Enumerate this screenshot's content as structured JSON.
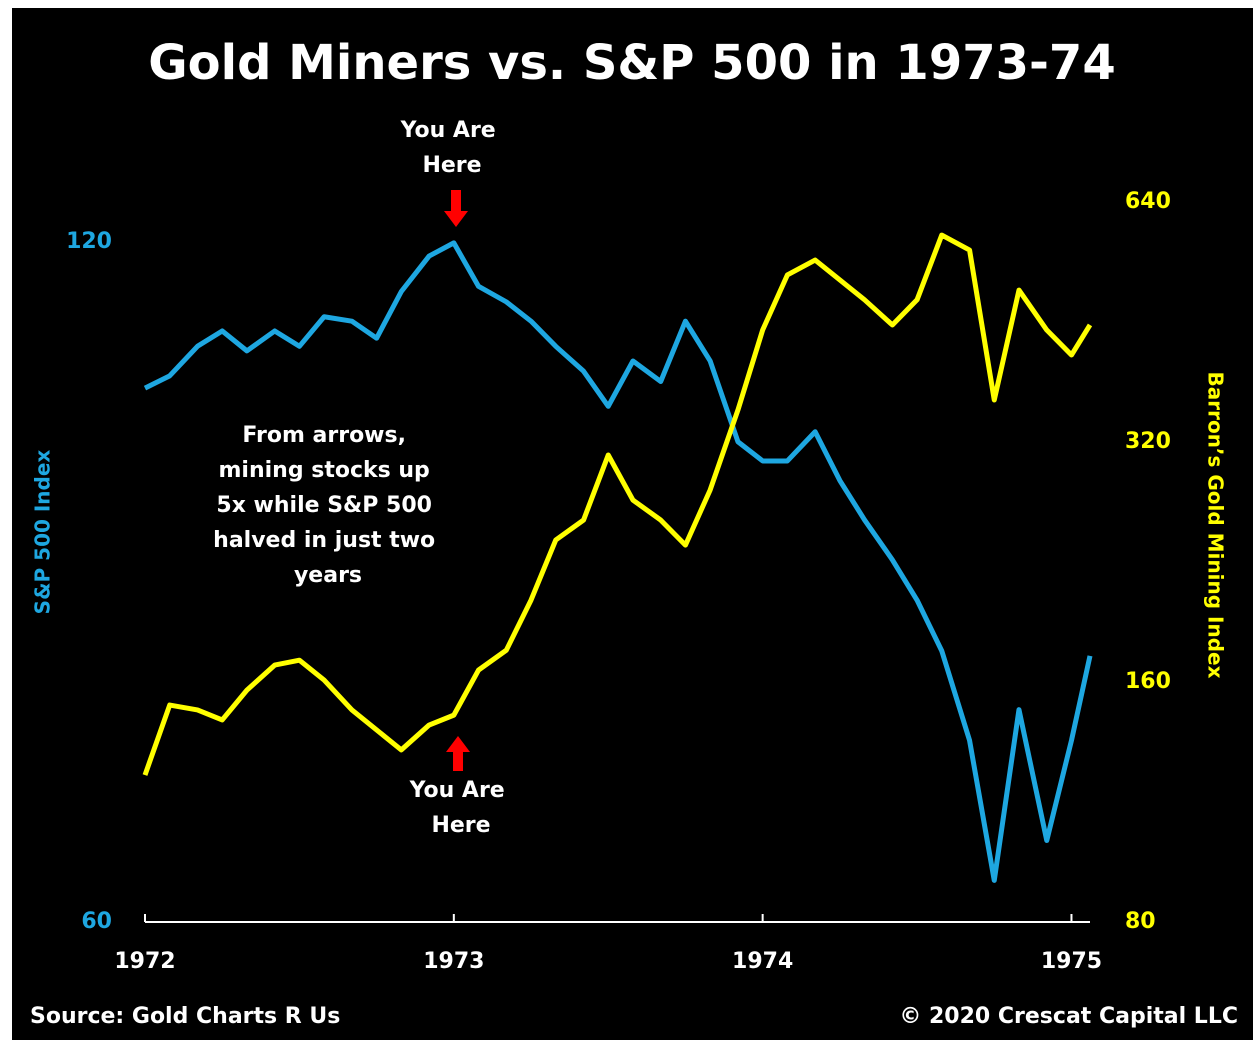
{
  "chart_data": {
    "type": "line",
    "title": "Gold Miners vs. S&P 500 in 1973-74",
    "ylabel": "S&P 500 Index",
    "y2label": "Barron’s Gold Mining Index",
    "source": "Source: Gold Charts R Us",
    "copyright": "© 2020 Crescat Capital LLC",
    "annotations": {
      "top_arrow": [
        "You Are",
        "Here"
      ],
      "bottom_arrow": [
        "You Are",
        "Here"
      ],
      "note": [
        "From arrows,",
        "mining stocks up",
        "5x while S&P 500",
        "halved in just two",
        "years"
      ]
    },
    "x": [
      1972.0,
      1972.08,
      1972.17,
      1972.25,
      1972.33,
      1972.42,
      1972.5,
      1972.58,
      1972.67,
      1972.75,
      1972.83,
      1972.92,
      1973.0,
      1973.08,
      1973.17,
      1973.25,
      1973.33,
      1973.42,
      1973.5,
      1973.58,
      1973.67,
      1973.75,
      1973.83,
      1973.92,
      1974.0,
      1974.08,
      1974.17,
      1974.25,
      1974.33,
      1974.42,
      1974.5,
      1974.58,
      1974.67,
      1974.75,
      1974.83,
      1974.92,
      1975.0,
      1975.06
    ],
    "series": [
      {
        "name": "S&P 500 Index",
        "color": "#1ea7e1",
        "axis": "y",
        "values": [
          103.4,
          104.7,
          107.9,
          109.6,
          107.4,
          109.6,
          107.9,
          111.2,
          110.7,
          108.8,
          114.1,
          118.3,
          119.9,
          114.7,
          112.9,
          110.7,
          107.9,
          105.2,
          101.5,
          106.3,
          104.1,
          110.7,
          106.3,
          97.9,
          96.0,
          96.0,
          98.9,
          94.1,
          90.4,
          86.8,
          83.3,
          79.1,
          72.2,
          62.6,
          74.5,
          65.2,
          72.2,
          78.7
        ]
      },
      {
        "name": "Barron’s Gold Mining Index",
        "color": "#ffff00",
        "axis": "y2",
        "values": [
          122.3,
          149.7,
          147.6,
          143.4,
          156.3,
          168.0,
          170.4,
          160.9,
          147.6,
          139.3,
          131.5,
          141.3,
          145.4,
          165.6,
          175.4,
          202.7,
          241.1,
          255.4,
          308.2,
          270.6,
          255.4,
          237.6,
          278.6,
          351.0,
          442.2,
          518.4,
          541.2,
          511.0,
          482.5,
          448.7,
          482.5,
          581.7,
          557.1,
          361.3,
          496.2,
          442.2,
          411.4,
          448.7
        ]
      }
    ],
    "xlim": [
      1972,
      1975.06
    ],
    "xticks": [
      1972,
      1973,
      1974,
      1975
    ],
    "ylim": [
      60,
      125
    ],
    "yticks": [
      60,
      120
    ],
    "yscale": "log",
    "y2lim": [
      80,
      640
    ],
    "y2ticks": [
      80,
      160,
      320,
      640
    ],
    "y2scale": "log",
    "ytick_color": "#1ea7e1",
    "y2tick_color": "#ffff00",
    "background": "#000000",
    "grid": false
  }
}
